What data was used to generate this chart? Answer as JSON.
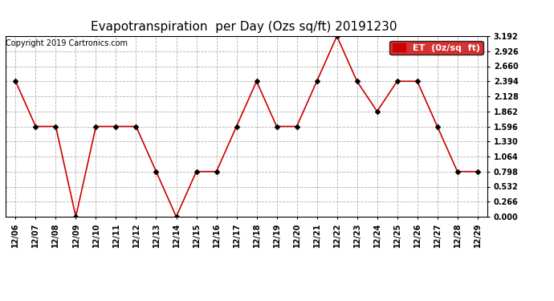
{
  "title": "Evapotranspiration  per Day (Ozs sq/ft) 20191230",
  "copyright": "Copyright 2019 Cartronics.com",
  "legend_label": "ET  (0z/sq  ft)",
  "x_labels": [
    "12/06",
    "12/07",
    "12/08",
    "12/09",
    "12/10",
    "12/11",
    "12/12",
    "12/13",
    "12/14",
    "12/15",
    "12/16",
    "12/17",
    "12/18",
    "12/19",
    "12/20",
    "12/21",
    "12/22",
    "12/23",
    "12/24",
    "12/25",
    "12/26",
    "12/27",
    "12/28",
    "12/29"
  ],
  "y_values": [
    2.394,
    1.596,
    1.596,
    0.0,
    1.596,
    1.596,
    1.596,
    0.798,
    0.0,
    0.798,
    0.798,
    1.596,
    2.394,
    1.596,
    1.596,
    2.394,
    3.192,
    2.394,
    1.862,
    2.394,
    2.394,
    1.596,
    0.798,
    0.798
  ],
  "ylim_min": 0.0,
  "ylim_max": 3.192,
  "yticks": [
    0.0,
    0.266,
    0.532,
    0.798,
    1.064,
    1.33,
    1.596,
    1.862,
    2.128,
    2.394,
    2.66,
    2.926,
    3.192
  ],
  "line_color": "#cc0000",
  "marker_color": "#000000",
  "background_color": "#ffffff",
  "grid_color": "#b0b0b0",
  "title_fontsize": 11,
  "copyright_fontsize": 7,
  "tick_fontsize": 7,
  "legend_bg": "#cc0000",
  "legend_text_color": "#ffffff",
  "legend_fontsize": 8
}
